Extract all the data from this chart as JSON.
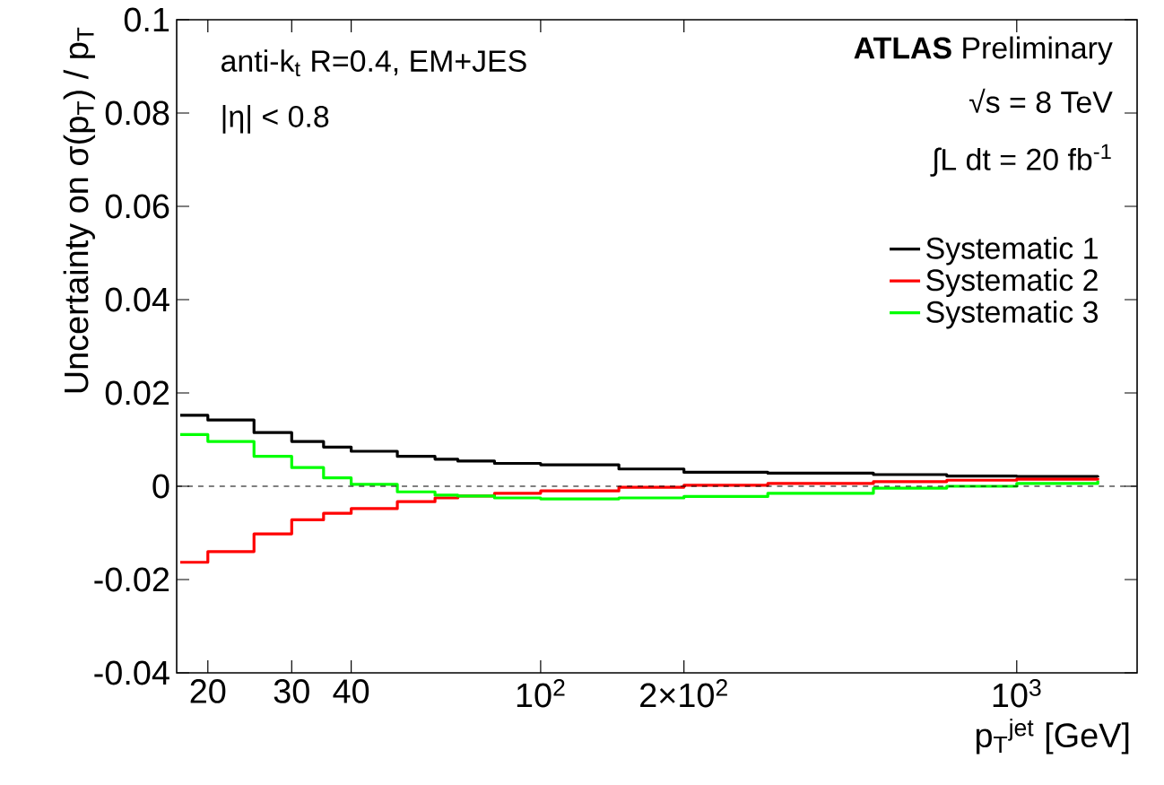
{
  "chart_data": {
    "type": "step",
    "xlabel": "p$_{T}$$^{jet}$ [GeV]",
    "ylabel": "Uncertainty on σ(p$_{T}$) / p$_{T}$",
    "annotations": [
      "anti-k$_{t}$ R=0.4, EM+JES",
      "|η| < 0.8",
      "**ATLAS** Preliminary",
      "√s = 8 TeV",
      "∫L dt = 20 fb$^{-1}$"
    ],
    "x": [
      17.5,
      20,
      25,
      30,
      35,
      40,
      50,
      60,
      67,
      80,
      100,
      146,
      200,
      300,
      500,
      713,
      1000,
      1480
    ],
    "series": [
      {
        "name": "Systematic 1",
        "color": "#000000",
        "values": [
          0.0152,
          0.0142,
          0.0115,
          0.0096,
          0.0084,
          0.0075,
          0.0064,
          0.0058,
          0.0054,
          0.0049,
          0.0046,
          0.0037,
          0.003,
          0.0028,
          0.0025,
          0.0022,
          0.0021,
          0.0019
        ]
      },
      {
        "name": "Systematic 2",
        "color": "#ff0000",
        "values": [
          -0.0163,
          -0.014,
          -0.0102,
          -0.0072,
          -0.0058,
          -0.0048,
          -0.0033,
          -0.0025,
          -0.0021,
          -0.0015,
          -0.001,
          -0.0002,
          0.0002,
          0.0006,
          0.001,
          0.0013,
          0.0015,
          0.0018
        ]
      },
      {
        "name": "Systematic 3",
        "color": "#00ff00",
        "values": [
          0.0111,
          0.0096,
          0.0064,
          0.004,
          0.0018,
          0.0004,
          -0.0012,
          -0.0019,
          -0.0021,
          -0.0025,
          -0.0027,
          -0.0025,
          -0.0022,
          -0.0015,
          -0.0004,
          0,
          0.0006,
          0.0012
        ]
      }
    ],
    "log": "x",
    "xlim": [
      17.2,
      1790
    ],
    "ylim": [
      -0.04,
      0.1
    ],
    "xticks": [
      20,
      30,
      40,
      {
        "value": 100,
        "label": "10$^{2}$"
      },
      {
        "value": 200,
        "label": "2×10$^{2}$"
      },
      {
        "value": 1000,
        "label": "10$^{3}$"
      }
    ],
    "yticks": [
      -0.04,
      -0.02,
      0,
      0.02,
      0.04,
      0.06,
      0.08,
      0.1
    ],
    "ref_lines": [
      {
        "axis": "y",
        "value": 0,
        "line_style": "dashed",
        "color": "#000000"
      }
    ],
    "legend": "right",
    "grid": false,
    "marker": "none",
    "line_style": "solid"
  }
}
